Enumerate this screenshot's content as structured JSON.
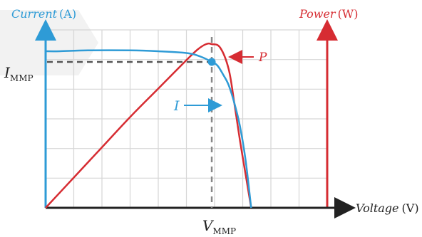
{
  "chart_data": {
    "type": "line",
    "title": "",
    "grid": true,
    "axes": {
      "current_label": "Current",
      "current_unit": "(A)",
      "power_label": "Power",
      "power_unit": "(W)",
      "voltage_label": "Voltage",
      "voltage_unit": "(V)"
    },
    "mpp": {
      "i_symbol": "I",
      "i_sub": "MMP",
      "v_symbol": "V",
      "v_sub": "MMP",
      "voltage": 0.59,
      "current": 0.82
    },
    "series": [
      {
        "name": "I",
        "color": "#2e9bd6",
        "x": [
          0,
          0.05,
          0.15,
          0.3,
          0.4,
          0.5,
          0.55,
          0.59,
          0.61,
          0.63,
          0.65,
          0.67,
          0.69,
          0.71,
          0.73
        ],
        "y": [
          0.88,
          0.88,
          0.885,
          0.885,
          0.88,
          0.87,
          0.85,
          0.82,
          0.8,
          0.75,
          0.69,
          0.59,
          0.46,
          0.27,
          0.0
        ]
      },
      {
        "name": "P",
        "color": "#d62c32",
        "x": [
          0,
          0.1,
          0.2,
          0.3,
          0.4,
          0.5,
          0.54,
          0.57,
          0.59,
          0.62,
          0.65,
          0.67,
          0.69,
          0.71,
          0.73
        ],
        "y": [
          0.0,
          0.17,
          0.34,
          0.51,
          0.67,
          0.83,
          0.89,
          0.92,
          0.92,
          0.9,
          0.78,
          0.59,
          0.38,
          0.19,
          0.0
        ]
      }
    ],
    "series_labels": {
      "current": "I",
      "power": "P"
    }
  }
}
